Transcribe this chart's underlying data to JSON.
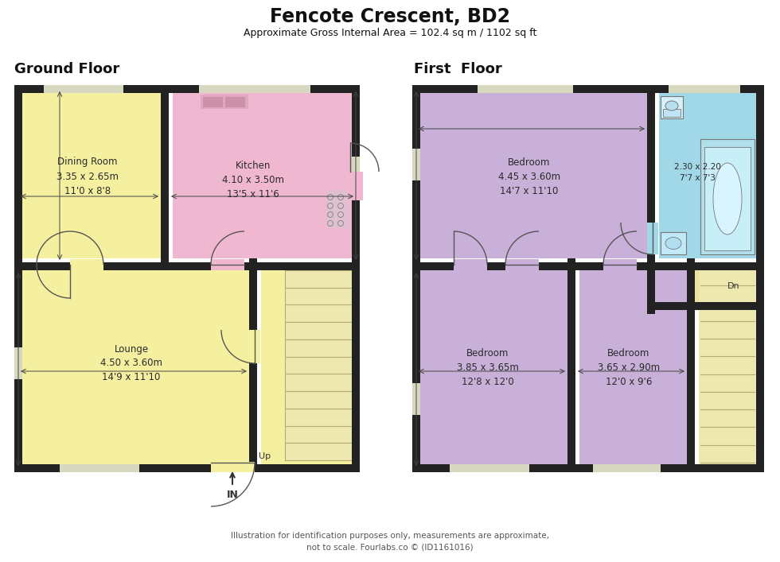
{
  "title": "Fencote Crescent, BD2",
  "subtitle": "Approximate Gross Internal Area = 102.4 sq m / 1102 sq ft",
  "footer_line1": "Illustration for identification purposes only, measurements are approximate,",
  "footer_line2": "not to scale. Fourlabs.co © (ID1161016)",
  "ground_floor_label": "Ground Floor",
  "first_floor_label": "First  Floor",
  "bg_color": "#ffffff",
  "wall_color": "#222222",
  "color_yellow": "#f5f0a0",
  "color_pink": "#f0b8d0",
  "color_purple": "#c8b0d8",
  "color_cyan": "#a0d8e8",
  "color_stair": "#ede8b0",
  "color_landing": "#e8e4a0",
  "win_color": "#d8d8c0"
}
